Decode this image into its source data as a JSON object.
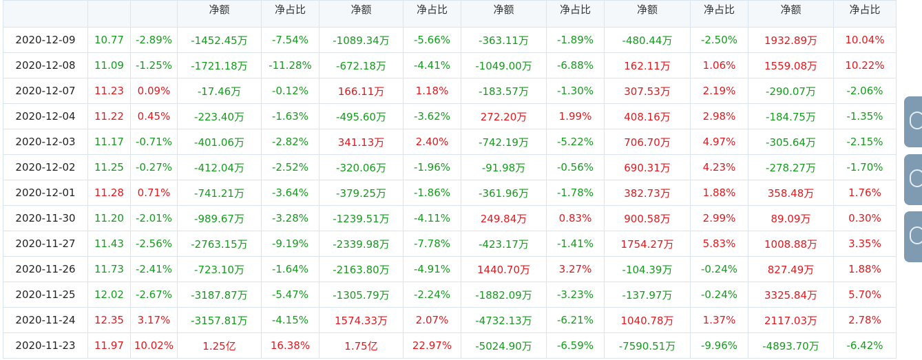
{
  "header": {
    "labels": [
      "",
      "",
      "",
      "净额",
      "净占比",
      "净额",
      "净占比",
      "净额",
      "净占比",
      "净额",
      "净占比",
      "净额",
      "净占比"
    ]
  },
  "rows": [
    {
      "date": "2020-12-09",
      "price": "10.77",
      "chg": "-2.89%",
      "c": [
        "-1452.45万",
        "-7.54%",
        "-1089.34万",
        "-5.66%",
        "-363.11万",
        "-1.89%",
        "-480.44万",
        "-2.50%",
        "1932.89万",
        "10.04%"
      ]
    },
    {
      "date": "2020-12-08",
      "price": "11.09",
      "chg": "-1.25%",
      "c": [
        "-1721.18万",
        "-11.28%",
        "-672.18万",
        "-4.41%",
        "-1049.00万",
        "-6.88%",
        "162.11万",
        "1.06%",
        "1559.08万",
        "10.22%"
      ]
    },
    {
      "date": "2020-12-07",
      "price": "11.23",
      "chg": "0.09%",
      "c": [
        "-17.46万",
        "-0.12%",
        "166.11万",
        "1.18%",
        "-183.57万",
        "-1.30%",
        "307.53万",
        "2.19%",
        "-290.07万",
        "-2.06%"
      ]
    },
    {
      "date": "2020-12-04",
      "price": "11.22",
      "chg": "0.45%",
      "c": [
        "-223.40万",
        "-1.63%",
        "-495.60万",
        "-3.62%",
        "272.20万",
        "1.99%",
        "408.16万",
        "2.98%",
        "-184.75万",
        "-1.35%"
      ]
    },
    {
      "date": "2020-12-03",
      "price": "11.17",
      "chg": "-0.71%",
      "c": [
        "-401.06万",
        "-2.82%",
        "341.13万",
        "2.40%",
        "-742.19万",
        "-5.22%",
        "706.70万",
        "4.97%",
        "-305.64万",
        "-2.15%"
      ]
    },
    {
      "date": "2020-12-02",
      "price": "11.25",
      "chg": "-0.27%",
      "c": [
        "-412.04万",
        "-2.52%",
        "-320.06万",
        "-1.96%",
        "-91.98万",
        "-0.56%",
        "690.31万",
        "4.23%",
        "-278.27万",
        "-1.70%"
      ]
    },
    {
      "date": "2020-12-01",
      "price": "11.28",
      "chg": "0.71%",
      "c": [
        "-741.21万",
        "-3.64%",
        "-379.25万",
        "-1.86%",
        "-361.96万",
        "-1.78%",
        "382.73万",
        "1.88%",
        "358.48万",
        "1.76%"
      ]
    },
    {
      "date": "2020-11-30",
      "price": "11.20",
      "chg": "-2.01%",
      "c": [
        "-989.67万",
        "-3.28%",
        "-1239.51万",
        "-4.11%",
        "249.84万",
        "0.83%",
        "900.58万",
        "2.99%",
        "89.09万",
        "0.30%"
      ]
    },
    {
      "date": "2020-11-27",
      "price": "11.43",
      "chg": "-2.56%",
      "c": [
        "-2763.15万",
        "-9.19%",
        "-2339.98万",
        "-7.78%",
        "-423.17万",
        "-1.41%",
        "1754.27万",
        "5.83%",
        "1008.88万",
        "3.35%"
      ]
    },
    {
      "date": "2020-11-26",
      "price": "11.73",
      "chg": "-2.41%",
      "c": [
        "-723.10万",
        "-1.64%",
        "-2163.80万",
        "-4.91%",
        "1440.70万",
        "3.27%",
        "-104.39万",
        "-0.24%",
        "827.49万",
        "1.88%"
      ]
    },
    {
      "date": "2020-11-25",
      "price": "12.02",
      "chg": "-2.67%",
      "c": [
        "-3187.87万",
        "-5.47%",
        "-1305.79万",
        "-2.24%",
        "-1882.09万",
        "-3.23%",
        "-137.97万",
        "-0.24%",
        "3325.84万",
        "5.70%"
      ]
    },
    {
      "date": "2020-11-24",
      "price": "12.35",
      "chg": "3.17%",
      "c": [
        "-3157.81万",
        "-4.15%",
        "1574.33万",
        "2.07%",
        "-4732.13万",
        "-6.21%",
        "1040.78万",
        "1.37%",
        "2117.03万",
        "2.78%"
      ]
    },
    {
      "date": "2020-11-23",
      "price": "11.97",
      "chg": "10.02%",
      "c": [
        "1.25亿",
        "16.38%",
        "1.75亿",
        "22.97%",
        "-5024.90万",
        "-6.59%",
        "-7590.51万",
        "-9.96%",
        "-4893.70万",
        "-6.42%"
      ]
    }
  ],
  "colors": {
    "positive": "#e0191e",
    "negative": "#169b1e",
    "border": "#d9e4ee",
    "header_bg": "#f5f8fb",
    "rail": "#7f9bb1"
  },
  "side_rail": [
    "rail-button-icon",
    "rail-button-icon",
    "rail-button-icon"
  ]
}
